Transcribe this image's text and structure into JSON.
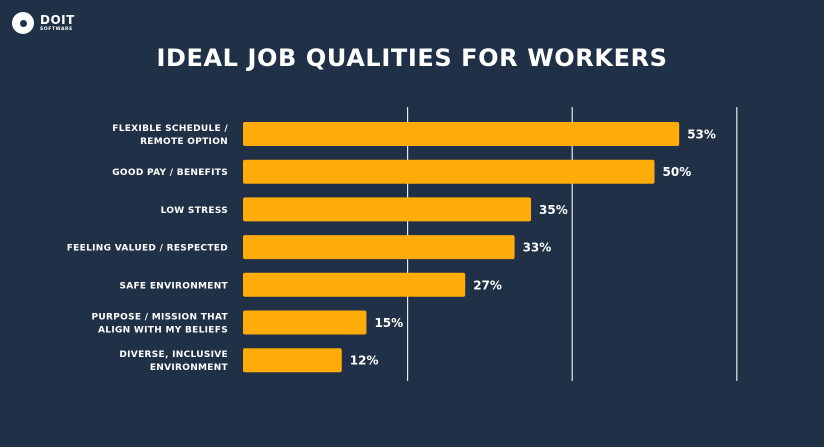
{
  "brand": {
    "name": "DOIT",
    "sub": "SOFTWARE"
  },
  "colors": {
    "background": "#1f3047",
    "bar": "#ffac0a",
    "gridline": "#e6e9ee",
    "text": "#ffffff"
  },
  "chart_data": {
    "type": "bar",
    "orientation": "horizontal",
    "title": "IDEAL JOB QUALITIES FOR WORKERS",
    "categories": [
      [
        "FLEXIBLE SCHEDULE /",
        "REMOTE OPTION"
      ],
      [
        "GOOD PAY / BENEFITS"
      ],
      [
        "LOW STRESS"
      ],
      [
        "FEELING VALUED / RESPECTED"
      ],
      [
        "SAFE ENVIRONMENT"
      ],
      [
        "PURPOSE / MISSION THAT",
        "ALIGN WITH MY BELIEFS"
      ],
      [
        "DIVERSE, INCLUSIVE",
        "ENVIRONMENT"
      ]
    ],
    "values": [
      53,
      50,
      35,
      33,
      27,
      15,
      12
    ],
    "value_labels": [
      "53%",
      "50%",
      "35%",
      "33%",
      "27%",
      "15%",
      "12%"
    ],
    "xlim": [
      0,
      60
    ],
    "gridlines_at": [
      20,
      40,
      60
    ],
    "grid": true,
    "legend": "none"
  }
}
